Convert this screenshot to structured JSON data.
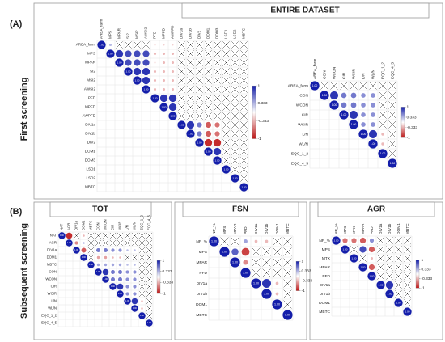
{
  "header": "ENTIRE DATASET",
  "panel_a": "(A)",
  "panel_b": "(B)",
  "row_a": "First screening",
  "row_b": "Subsequent screening",
  "chart_data": [
    {
      "type": "correlogram",
      "variables": [
        "AREA_farm",
        "MPS",
        "MPAR",
        "SI2",
        "MSI2",
        "AWSI2",
        "PFD",
        "MPFD",
        "AWPFD",
        "DIV1a",
        "DIV1b",
        "DIV2",
        "DOM1",
        "DOM3",
        "LSD1",
        "LSD2",
        "MBTC"
      ],
      "correlations": [
        [
          0.3,
          0.1,
          0.1,
          0.1,
          0.1,
          -0.2,
          -0.2,
          -0.2,
          0.1,
          0.1,
          0.1,
          0.1,
          0.1,
          0.1,
          0.1,
          0.1
        ],
        [
          0.9,
          0.8,
          0.8,
          0.8,
          -0.3,
          -0.3,
          -0.3,
          0.1,
          0.1,
          0.1,
          -0.1,
          0.1,
          0.1,
          0.1,
          0.1
        ],
        [
          0.8,
          0.8,
          0.8,
          -0.2,
          -0.3,
          -0.3,
          0.1,
          0.1,
          0.1,
          -0.1,
          0.1,
          0.1,
          0.1,
          0.1
        ],
        [
          0.9,
          0.9,
          -0.3,
          -0.3,
          -0.3,
          0.1,
          0.1,
          0.1,
          0.1,
          0.1,
          0.1,
          0.1,
          0.1
        ],
        [
          0.9,
          -0.3,
          -0.3,
          -0.3,
          0.1,
          0.1,
          0.1,
          0.1,
          0.1,
          0.1,
          0.1,
          0.1
        ],
        [
          -0.3,
          -0.3,
          -0.3,
          0.1,
          0.1,
          0.1,
          0.1,
          0.1,
          0.1,
          0.1,
          0.1
        ],
        [
          0.9,
          0.9,
          0.1,
          0.1,
          0.1,
          0.1,
          0.1,
          0.1,
          0.1,
          0.1
        ],
        [
          0.9,
          0.1,
          0.1,
          0.1,
          0.1,
          0.1,
          0.1,
          0.1,
          0.1
        ],
        [
          0.1,
          0.1,
          0.1,
          0.1,
          0.1,
          0.1,
          0.1,
          0.1
        ],
        [
          0.9,
          0.6,
          -0.7,
          -0.6,
          0.1,
          0.1,
          0.1
        ],
        [
          0.6,
          -0.7,
          -0.6,
          0.1,
          0.1,
          0.1
        ],
        [
          -0.9,
          -0.9,
          0.1,
          0.1,
          0.1
        ],
        [
          0.9,
          0.1,
          0.1,
          0.1
        ],
        [
          0.1,
          0.1,
          0.1
        ],
        [
          0.1,
          0.1
        ],
        [
          0.1
        ]
      ],
      "diagonal_label": "1.00",
      "clim": [
        -1,
        1
      ],
      "cticks": [
        1,
        0.333,
        -0.333,
        -1
      ]
    },
    {
      "type": "correlogram",
      "variables": [
        "AREA_farm",
        "CON",
        "WCON",
        "CIR",
        "WCIR",
        "L/N",
        "WL/N",
        "EQC_1_2",
        "EQC_4_5"
      ],
      "correlations": [
        [
          0.1,
          0.1,
          0.1,
          0.1,
          0.1,
          0.1,
          0.1,
          0.1
        ],
        [
          0.9,
          0.6,
          0.6,
          0.5,
          0.5,
          0.1,
          0.1
        ],
        [
          0.6,
          0.6,
          0.5,
          0.5,
          0.1,
          0.1
        ],
        [
          0.9,
          0.5,
          0.5,
          0.1,
          0.1
        ],
        [
          0.5,
          0.5,
          0.1,
          0.1
        ],
        [
          0.9,
          -0.3,
          0.1
        ],
        [
          -0.3,
          0.1
        ],
        [
          0.1
        ]
      ],
      "diagonal_label": "1.00",
      "clim": [
        -1,
        1
      ],
      "cticks": [
        1,
        0.333,
        -0.333,
        -1
      ]
    },
    {
      "type": "correlogram",
      "title": "TOT",
      "variables": [
        "NAT",
        "AGR",
        "DIV1a",
        "DOM1",
        "MBTC",
        "CON",
        "WCON",
        "CIR",
        "WCIR",
        "L/N",
        "WL/N",
        "EQC_1_2",
        "EQC_4_5"
      ],
      "correlations": [
        [
          -0.9,
          0.1,
          -0.3,
          0.1,
          0.1,
          0.1,
          0.1,
          0.1,
          0.1,
          0.1,
          0.1,
          0.1
        ],
        [
          -0.5,
          0.3,
          0.1,
          0.1,
          0.1,
          0.1,
          0.1,
          0.1,
          0.1,
          0.1,
          0.1
        ],
        [
          -0.7,
          0.1,
          0.6,
          0.6,
          0.5,
          0.5,
          0.3,
          0.3,
          0.1,
          0.1
        ],
        [
          0.1,
          -0.4,
          -0.4,
          -0.3,
          -0.3,
          0.1,
          0.1,
          0.1,
          0.1
        ],
        [
          0.4,
          0.4,
          0.4,
          0.4,
          0.3,
          0.3,
          0.1,
          0.1
        ],
        [
          0.9,
          0.6,
          0.6,
          0.5,
          0.5,
          0.1,
          0.1
        ],
        [
          0.6,
          0.6,
          0.5,
          0.5,
          0.1,
          0.1
        ],
        [
          0.9,
          0.5,
          0.5,
          0.1,
          0.1
        ],
        [
          0.5,
          0.5,
          0.1,
          0.1
        ],
        [
          0.9,
          -0.3,
          0.1
        ],
        [
          -0.3,
          0.1
        ],
        [
          0.1
        ]
      ],
      "diagonal_label": "1.00",
      "clim": [
        -1,
        1
      ],
      "cticks": [
        1,
        0.333,
        -0.333,
        -1
      ]
    },
    {
      "type": "correlogram",
      "title": "FSN",
      "variables": [
        "NP_%",
        "MPS",
        "MPAR",
        "PFD",
        "DIV1a",
        "DIV1b",
        "DOM1",
        "MBTC"
      ],
      "correlations": [
        [
          0.1,
          0.1,
          0.4,
          -0.3,
          -0.3,
          0.1,
          0.1
        ],
        [
          0.7,
          -0.8,
          0.1,
          0.1,
          0.1,
          0.1
        ],
        [
          -0.5,
          0.1,
          0.1,
          0.1,
          0.1
        ],
        [
          0.1,
          0.1,
          0.1,
          0.1
        ],
        [
          0.9,
          -0.3,
          0.1
        ],
        [
          -0.3,
          0.1
        ],
        [
          0.1
        ]
      ],
      "diagonal_label": "1.00",
      "clim": [
        -1,
        1
      ],
      "cticks": [
        1,
        0.333,
        -0.333,
        -1
      ]
    },
    {
      "type": "correlogram",
      "title": "AGR",
      "variables": [
        "NP_%",
        "MPS",
        "MTX",
        "MPAR",
        "PFD",
        "DIV1a",
        "DIV1b",
        "DOM1",
        "MBTC"
      ],
      "correlations": [
        [
          -0.6,
          -0.6,
          -0.7,
          0.5,
          0.1,
          0.1,
          0.1,
          0.1
        ],
        [
          0.1,
          0.8,
          -0.7,
          0.1,
          0.1,
          0.1,
          0.1
        ],
        [
          0.1,
          -0.3,
          0.1,
          0.1,
          0.1,
          0.1
        ],
        [
          -0.7,
          0.1,
          0.1,
          0.1,
          0.1
        ],
        [
          0.1,
          0.1,
          0.1,
          0.1
        ],
        [
          0.9,
          0.1,
          0.1
        ],
        [
          0.1,
          0.1
        ],
        [
          0.1
        ]
      ],
      "diagonal_label": "1.00",
      "clim": [
        -1,
        1
      ],
      "cticks": [
        1,
        0.333,
        -0.333,
        -1
      ]
    }
  ]
}
